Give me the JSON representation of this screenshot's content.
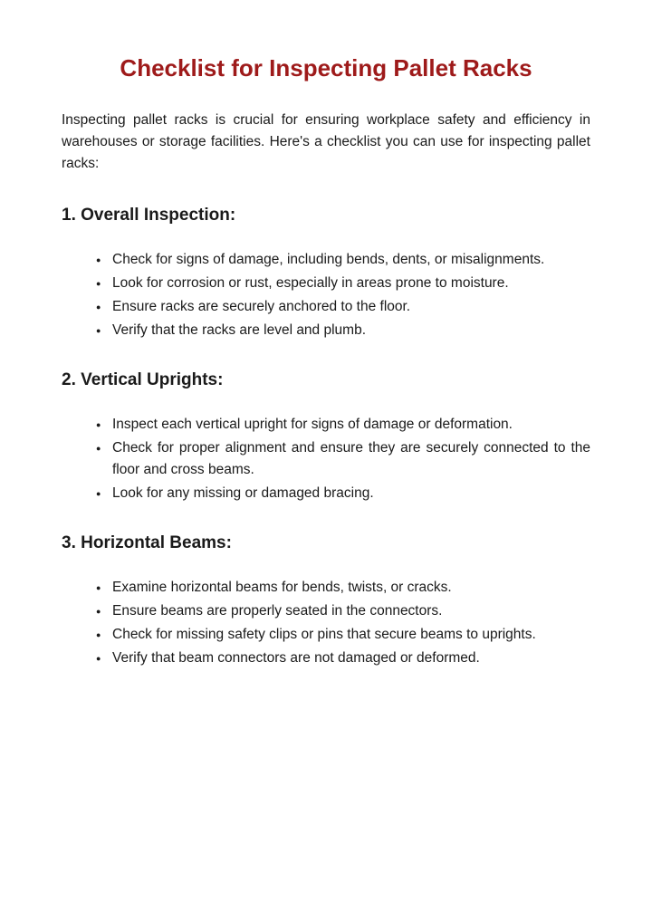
{
  "title": "Checklist for Inspecting Pallet Racks",
  "title_color": "#9e1a1a",
  "intro": "Inspecting pallet racks is crucial for ensuring workplace safety and efficiency in warehouses or storage facilities. Here's a checklist you can use for inspecting pallet racks:",
  "text_color": "#1a1a1a",
  "background_color": "#ffffff",
  "font_family": "Arial",
  "title_fontsize": 26,
  "heading_fontsize": 19,
  "body_fontsize": 15.5,
  "sections": [
    {
      "heading": "1. Overall Inspection:",
      "items": [
        "Check for signs of damage, including bends, dents, or misalignments.",
        "Look for corrosion or rust, especially in areas prone to moisture.",
        "Ensure racks are securely anchored to the floor.",
        "Verify that the racks are level and plumb."
      ]
    },
    {
      "heading": "2. Vertical Uprights:",
      "items": [
        "Inspect each vertical upright for signs of damage or deformation.",
        "Check for proper alignment and ensure they are securely connected to the floor and cross beams.",
        "Look for any missing or damaged bracing."
      ]
    },
    {
      "heading": "3. Horizontal Beams:",
      "items": [
        "Examine horizontal beams for bends, twists, or cracks.",
        "Ensure beams are properly seated in the connectors.",
        "Check for missing safety clips or pins that secure beams to uprights.",
        "Verify that beam connectors are not damaged or deformed."
      ]
    }
  ]
}
